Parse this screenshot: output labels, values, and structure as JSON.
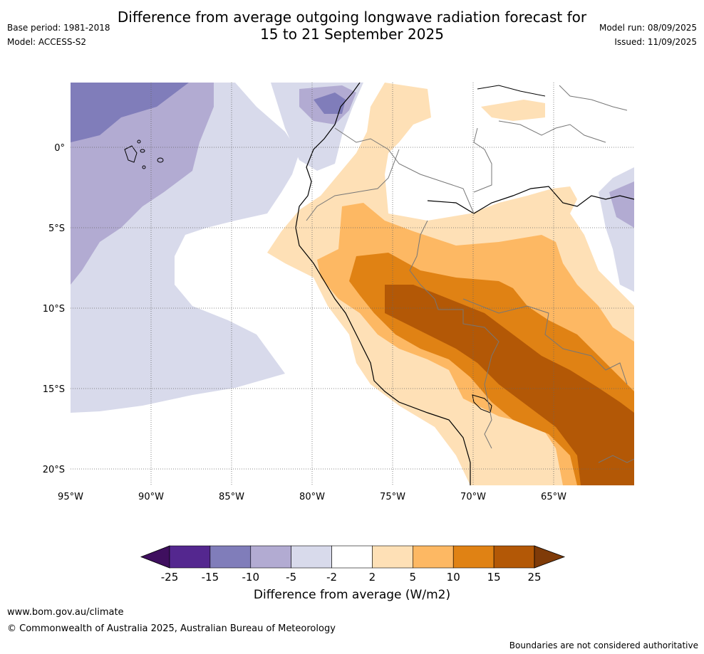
{
  "title": {
    "line1": "Difference from average outgoing longwave radiation forecast for",
    "line2": "15 to 21 September 2025"
  },
  "meta": {
    "base_period": "Base period: 1981-2018",
    "model": "Model: ACCESS-S2",
    "model_run": "Model run: 08/09/2025",
    "issued": "Issued: 11/09/2025"
  },
  "map": {
    "lon_labels": [
      "95°W",
      "90°W",
      "85°W",
      "80°W",
      "75°W",
      "70°W",
      "65°W"
    ],
    "lat_labels": [
      "0°",
      "5°S",
      "10°S",
      "15°S",
      "20°S"
    ],
    "region": "Western South America and eastern Pacific"
  },
  "colorbar": {
    "ticks": [
      "-25",
      "-15",
      "-10",
      "-5",
      "-2",
      "2",
      "5",
      "10",
      "15",
      "25"
    ],
    "colors": [
      "#3f0f5f",
      "#54278f",
      "#807dba",
      "#b2abd2",
      "#d8daeb",
      "#ffffff",
      "#fee0b6",
      "#fdb863",
      "#e08214",
      "#b35806",
      "#7f3b08"
    ],
    "label": "Difference from average (W/m2)"
  },
  "footer": {
    "site": "www.bom.gov.au/climate",
    "copyright": "© Commonwealth of Australia 2025, Australian Bureau of Meteorology",
    "disclaimer": "Boundaries are not considered authoritative"
  }
}
